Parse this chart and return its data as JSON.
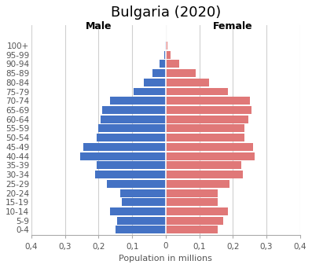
{
  "title": "Bulgaria (2020)",
  "xlabel": "Population in millions",
  "male_label": "Male",
  "female_label": "Female",
  "age_groups": [
    "0-4",
    "5-9",
    "10-14",
    "15-19",
    "20-24",
    "25-29",
    "30-34",
    "35-39",
    "40-44",
    "45-49",
    "50-54",
    "55-59",
    "60-64",
    "65-69",
    "70-74",
    "75-79",
    "80-84",
    "85-89",
    "90-94",
    "95-99",
    "100+"
  ],
  "male_values": [
    0.15,
    0.145,
    0.165,
    0.13,
    0.135,
    0.175,
    0.21,
    0.205,
    0.255,
    0.245,
    0.205,
    0.2,
    0.195,
    0.19,
    0.165,
    0.095,
    0.065,
    0.04,
    0.018,
    0.005,
    0.002
  ],
  "female_values": [
    0.155,
    0.17,
    0.185,
    0.155,
    0.155,
    0.19,
    0.23,
    0.225,
    0.265,
    0.26,
    0.235,
    0.235,
    0.245,
    0.255,
    0.25,
    0.185,
    0.13,
    0.09,
    0.04,
    0.015,
    0.005
  ],
  "male_color": "#4472C4",
  "female_color": "#E07878",
  "background_color": "#FFFFFF",
  "xlim": 0.4,
  "xtick_positions": [
    -0.4,
    -0.3,
    -0.2,
    -0.1,
    0.0,
    0.1,
    0.2,
    0.3,
    0.4
  ],
  "xtick_labels": [
    "0,4",
    "0,3",
    "0,2",
    "0,1",
    "0",
    "0,1",
    "0,2",
    "0,3",
    "0,4"
  ],
  "grid_color": "#D0D0D0",
  "title_fontsize": 13,
  "axis_label_fontsize": 8,
  "header_fontsize": 9,
  "tick_fontsize": 7.5,
  "bar_height": 0.85
}
